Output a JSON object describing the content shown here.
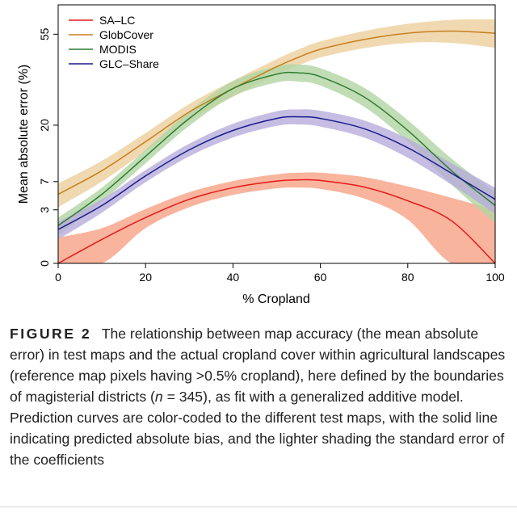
{
  "chart_data": {
    "type": "line",
    "xlabel": "% Cropland",
    "ylabel": "Mean absolute error (%)",
    "xlim": [
      0,
      100
    ],
    "x_ticks": [
      "0",
      "20",
      "40",
      "60",
      "80",
      "100"
    ],
    "y_ticks": [
      "0",
      "3",
      "7",
      "20",
      "55"
    ],
    "y_scale": "sqrt",
    "legend_position": "top-left",
    "grid": false,
    "bands": "standard error shading around each curve",
    "x": [
      0,
      10,
      20,
      30,
      40,
      50,
      55,
      60,
      70,
      80,
      90,
      100
    ],
    "series": [
      {
        "name": "SA–LC",
        "color": "#e41a1c",
        "band_color": "#f7a184",
        "values": [
          0,
          0.6,
          2.2,
          4.3,
          6.0,
          7.1,
          7.3,
          7.2,
          6.1,
          4.1,
          1.9,
          0.0
        ],
        "se": [
          0.7,
          0.7,
          0.9,
          1.0,
          1.1,
          1.2,
          1.3,
          1.4,
          1.7,
          2.1,
          2.6,
          3.0
        ]
      },
      {
        "name": "GlobCover",
        "color": "#c87f1f",
        "band_color": "#eccf9c",
        "values": [
          5.0,
          9.0,
          15.5,
          24.0,
          32.0,
          40.5,
          44.5,
          48.0,
          52.5,
          55.5,
          56.5,
          55.5
        ],
        "se": [
          1.7,
          2.0,
          2.3,
          2.6,
          2.9,
          3.2,
          3.4,
          3.6,
          4.0,
          4.6,
          5.6,
          6.8
        ]
      },
      {
        "name": "MODIS",
        "color": "#2e7d32",
        "band_color": "#b1d5a3",
        "values": [
          1.5,
          5.0,
          12.0,
          22.0,
          32.0,
          37.5,
          38.0,
          36.5,
          29.0,
          18.5,
          9.0,
          3.5
        ],
        "se": [
          0.7,
          1.0,
          1.5,
          2.2,
          2.8,
          3.2,
          3.4,
          3.4,
          3.3,
          3.0,
          2.5,
          1.8
        ]
      },
      {
        "name": "GLC–Share",
        "color": "#1a1a8c",
        "band_color": "#b6acdb",
        "values": [
          1.2,
          3.5,
          8.0,
          13.5,
          18.5,
          22.0,
          22.5,
          22.0,
          19.0,
          14.0,
          8.5,
          4.3
        ],
        "se": [
          0.6,
          0.8,
          1.1,
          1.5,
          1.9,
          2.2,
          2.3,
          2.4,
          2.4,
          2.3,
          2.0,
          1.7
        ]
      }
    ]
  },
  "caption": {
    "label": "FIGURE 2",
    "before_n": "The relationship between map accuracy (the mean absolute error) in test maps and the actual cropland cover within agricultural landscapes (reference map pixels having >0.5% cropland), here defined by the boundaries of magisterial districts (",
    "n_symbol": "n",
    "after_n": " = 345), as fit with a generalized additive model. Prediction curves are color-coded to the different test maps, with the solid line indicating predicted absolute bias, and the lighter shading the standard error of the coefficients"
  }
}
